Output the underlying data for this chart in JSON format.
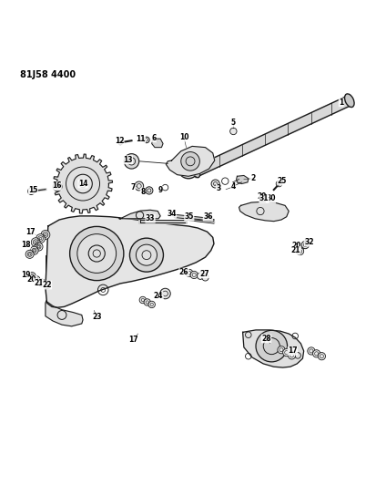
{
  "title": "81J58 4400",
  "background_color": "#ffffff",
  "line_color": "#1a1a1a",
  "text_color": "#000000",
  "fig_width": 4.14,
  "fig_height": 5.33,
  "dpi": 100
}
